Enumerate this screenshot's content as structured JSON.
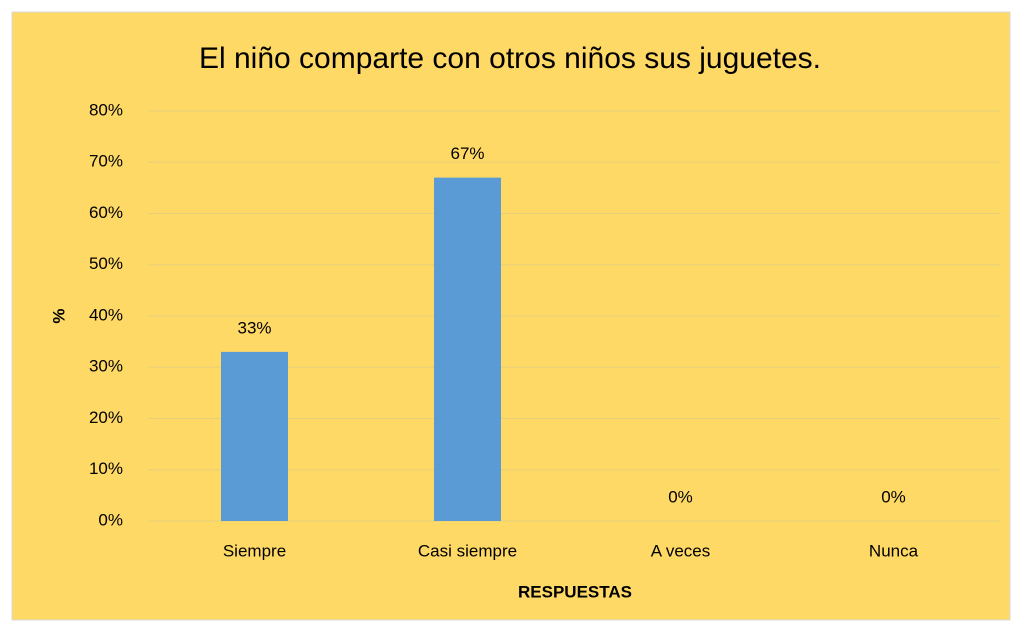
{
  "chart_data": {
    "type": "bar",
    "title": "El niño comparte con otros niños sus juguetes.",
    "x_label": "RESPUESTAS",
    "y_label": "%",
    "categories": [
      "Siempre",
      "Casi siempre",
      "A veces",
      "Nunca"
    ],
    "values": [
      33,
      67,
      0,
      0
    ],
    "value_labels": [
      "33%",
      "67%",
      "0%",
      "0%"
    ],
    "color": "#5b9bd5",
    "ylim": [
      0,
      80
    ],
    "yticks": [
      {
        "value": 0,
        "label": "0%"
      },
      {
        "value": 10,
        "label": "10%"
      },
      {
        "value": 20,
        "label": "20%"
      },
      {
        "value": 30,
        "label": "30%"
      },
      {
        "value": 40,
        "label": "40%"
      },
      {
        "value": 50,
        "label": "50%"
      },
      {
        "value": 60,
        "label": "60%"
      },
      {
        "value": 70,
        "label": "70%"
      },
      {
        "value": 80,
        "label": "80%"
      }
    ],
    "grid": true
  }
}
